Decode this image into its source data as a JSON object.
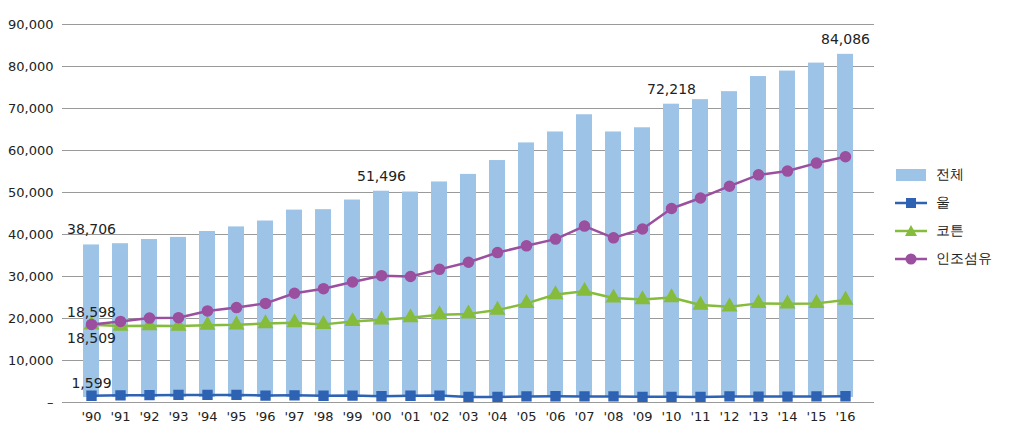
{
  "chart_data": {
    "type": "bar",
    "categories": [
      "'90",
      "'91",
      "'92",
      "'93",
      "'94",
      "'95",
      "'96",
      "'97",
      "'98",
      "'99",
      "'00",
      "'01",
      "'02",
      "'03",
      "'04",
      "'05",
      "'06",
      "'07",
      "'08",
      "'09",
      "'10",
      "'11",
      "'12",
      "'13",
      "'14",
      "'15",
      "'16"
    ],
    "series": [
      {
        "name": "전체",
        "type": "bar",
        "color": "#9dc3e6",
        "values": [
          38706,
          39000,
          40000,
          40500,
          41900,
          43000,
          44400,
          47000,
          47100,
          49400,
          51496,
          51300,
          53700,
          55500,
          58800,
          63000,
          65600,
          69700,
          65600,
          66600,
          72218,
          73300,
          75200,
          78800,
          80100,
          82000,
          84086
        ]
      },
      {
        "name": "울",
        "type": "line",
        "color": "#2e62b3",
        "marker": "square",
        "values": [
          1599,
          1700,
          1750,
          1800,
          1800,
          1800,
          1650,
          1700,
          1600,
          1650,
          1500,
          1600,
          1650,
          1300,
          1300,
          1450,
          1500,
          1450,
          1450,
          1350,
          1350,
          1300,
          1450,
          1400,
          1400,
          1450,
          1500
        ]
      },
      {
        "name": "코튼",
        "type": "line",
        "color": "#86bc3b",
        "marker": "triangle",
        "values": [
          18509,
          18200,
          18300,
          18200,
          18400,
          18500,
          18800,
          19000,
          18600,
          19300,
          19700,
          20200,
          20900,
          21100,
          22000,
          23600,
          25700,
          26500,
          24900,
          24500,
          25000,
          23200,
          22800,
          23600,
          23500,
          23600,
          24400
        ]
      },
      {
        "name": "인조섬유",
        "type": "line",
        "color": "#9b4f9f",
        "marker": "circle",
        "values": [
          18598,
          19300,
          20100,
          20200,
          21800,
          22600,
          23600,
          26000,
          27100,
          28700,
          30200,
          30000,
          31700,
          33400,
          35700,
          37300,
          38900,
          42000,
          39200,
          41300,
          46200,
          48700,
          51500,
          54200,
          55100,
          57000,
          58500
        ]
      }
    ],
    "annotations": [
      {
        "series": "전체",
        "category": "'90",
        "value": 38706,
        "label": "38,706"
      },
      {
        "series": "전체",
        "category": "'00",
        "value": 51496,
        "label": "51,496"
      },
      {
        "series": "전체",
        "category": "'10",
        "value": 72218,
        "label": "72,218"
      },
      {
        "series": "전체",
        "category": "'16",
        "value": 84086,
        "label": "84,086"
      },
      {
        "series": "인조섬유",
        "category": "'90",
        "value": 18598,
        "label": "18,598"
      },
      {
        "series": "코튼",
        "category": "'90",
        "value": 18509,
        "label": "18,509"
      },
      {
        "series": "울",
        "category": "'90",
        "value": 1599,
        "label": "1,599"
      }
    ],
    "ylim": [
      0,
      90000
    ],
    "yticks": [
      {
        "value": 0,
        "label": "–"
      },
      {
        "value": 10000,
        "label": "10,000"
      },
      {
        "value": 20000,
        "label": "20,000"
      },
      {
        "value": 30000,
        "label": "30,000"
      },
      {
        "value": 40000,
        "label": "40,000"
      },
      {
        "value": 50000,
        "label": "50,000"
      },
      {
        "value": 60000,
        "label": "60,000"
      },
      {
        "value": 70000,
        "label": "70,000"
      },
      {
        "value": 80000,
        "label": "80,000"
      },
      {
        "value": 90000,
        "label": "90,000"
      }
    ],
    "grid": true,
    "legend": "right"
  }
}
